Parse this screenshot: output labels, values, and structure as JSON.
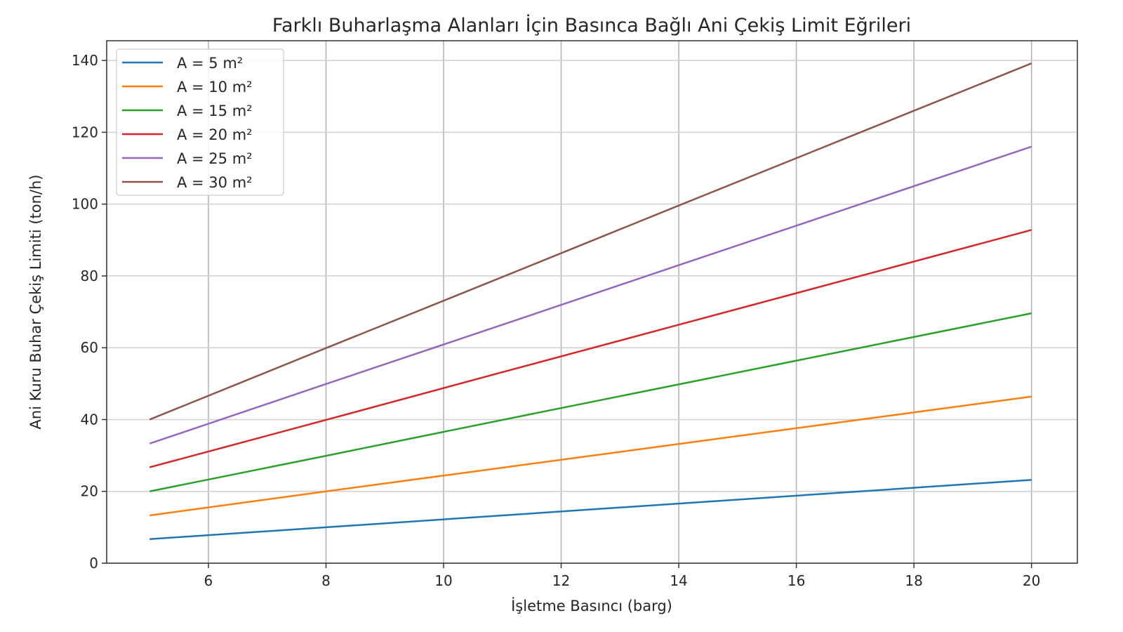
{
  "chart_data": {
    "type": "line",
    "title": "Farklı Buharlaşma Alanları İçin Basınca Bağlı Ani Çekiş Limit Eğrileri",
    "xlabel": "İşletme Basıncı (barg)",
    "ylabel": "Ani Kuru Buhar Çekiş Limiti (ton/h)",
    "xlim": [
      4.27,
      20.78
    ],
    "ylim": [
      0,
      145.5
    ],
    "xticks": [
      6,
      8,
      10,
      12,
      14,
      16,
      18,
      20
    ],
    "yticks": [
      0,
      20,
      40,
      60,
      80,
      100,
      120,
      140
    ],
    "grid": true,
    "legend_position": "top-left",
    "x": [
      5,
      8,
      11,
      14,
      17,
      20
    ],
    "series": [
      {
        "name": "A = 5 m²",
        "color": "#1f77b4",
        "values": [
          6.7,
          10.0,
          13.3,
          16.6,
          19.9,
          23.2
        ]
      },
      {
        "name": "A = 10 m²",
        "color": "#ff7f0e",
        "values": [
          13.3,
          20.0,
          26.6,
          33.2,
          39.8,
          46.4
        ]
      },
      {
        "name": "A = 15 m²",
        "color": "#2ca02c",
        "values": [
          20.0,
          29.9,
          39.9,
          49.8,
          59.7,
          69.6
        ]
      },
      {
        "name": "A = 20 m²",
        "color": "#d62728",
        "values": [
          26.7,
          39.9,
          53.2,
          66.4,
          79.6,
          92.8
        ]
      },
      {
        "name": "A = 25 m²",
        "color": "#9467bd",
        "values": [
          33.3,
          49.9,
          66.4,
          83.0,
          99.5,
          116.0
        ]
      },
      {
        "name": "A = 30 m²",
        "color": "#8c564b",
        "values": [
          40.0,
          59.9,
          79.7,
          99.6,
          119.4,
          139.2
        ]
      }
    ]
  }
}
